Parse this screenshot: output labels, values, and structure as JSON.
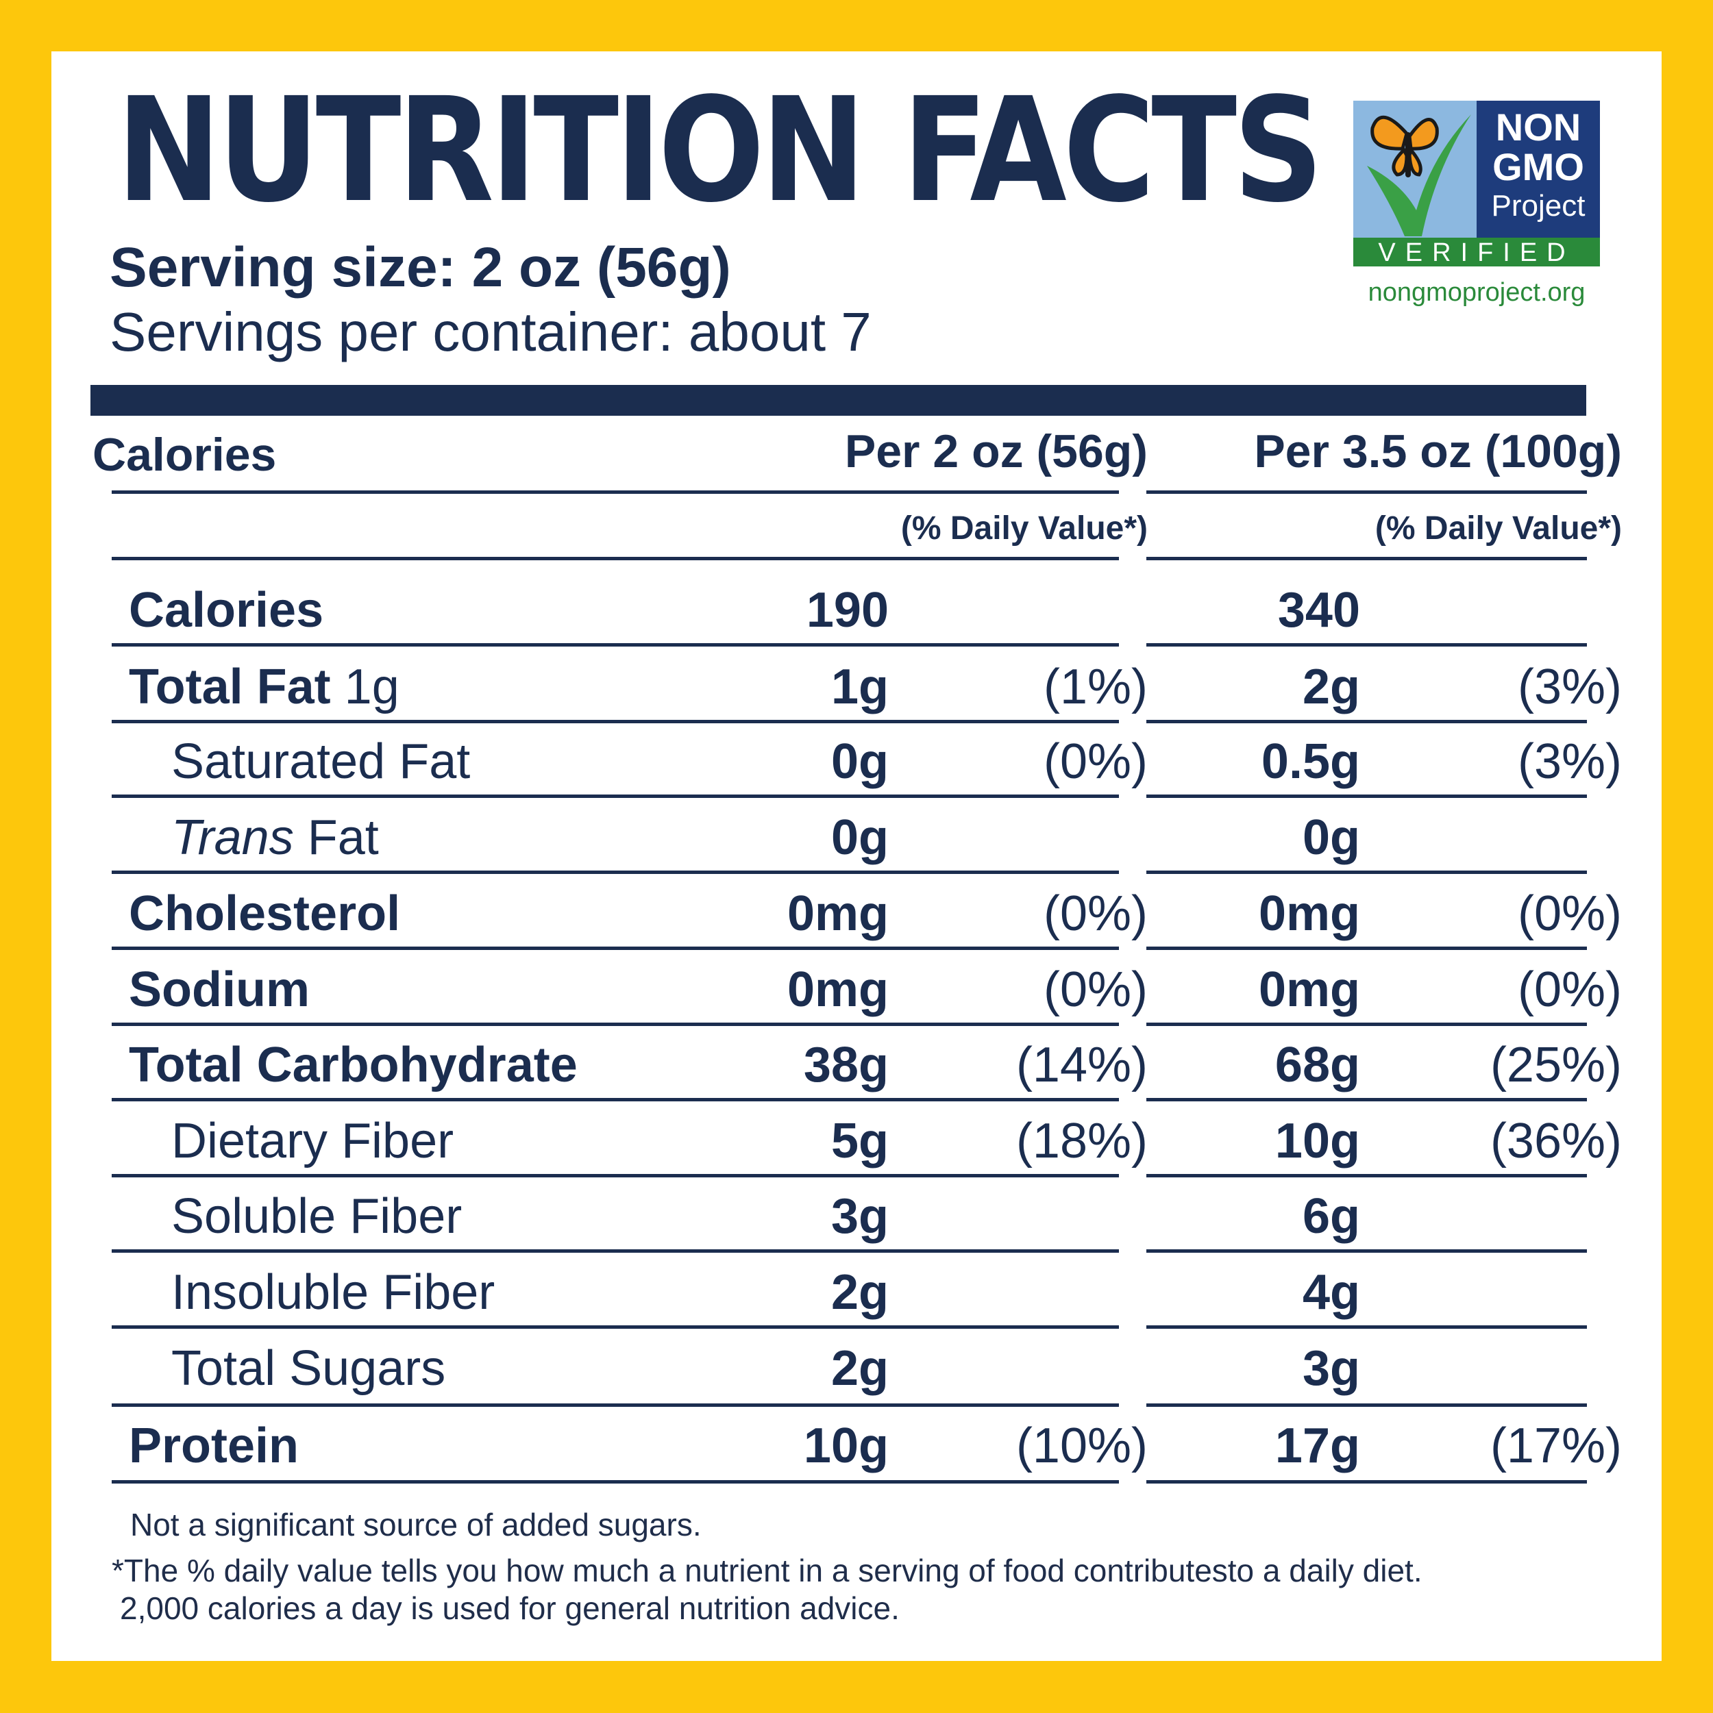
{
  "title": "NUTRITION FACTS",
  "serving_size": "Serving size: 2 oz (56g)",
  "servings_per_container": "Servings per container: about 7",
  "badge": {
    "line1": "NON",
    "line2": "GMO",
    "line3": "Project",
    "verified": "VERIFIED",
    "url": "nongmoproject.org"
  },
  "colors": {
    "background": "#FDC70C",
    "ink": "#1b2d4f",
    "badge_sky": "#8cb8e0",
    "badge_navy": "#1e3c7c",
    "badge_green": "#2a8a3a",
    "butterfly_orange": "#f39a1e"
  },
  "header": {
    "label": "Calories",
    "col1": "Per 2 oz (56g)",
    "col2": "Per 3.5 oz (100g)",
    "dv": "(% Daily Value*)"
  },
  "rows": [
    {
      "label": "Calories",
      "v1": "190",
      "p1": "",
      "v2": "340",
      "p2": ""
    },
    {
      "label": "Total Fat",
      "qty": " 1g",
      "v1": "1g",
      "p1": "(1%)",
      "v2": "2g",
      "p2": "(3%)"
    },
    {
      "label": "Saturated Fat",
      "v1": "0g",
      "p1": "(0%)",
      "v2": "0.5g",
      "p2": "(3%)"
    },
    {
      "label_italic": "Trans",
      "label": " Fat",
      "v1": "0g",
      "p1": "",
      "v2": "0g",
      "p2": ""
    },
    {
      "label": "Cholesterol",
      "v1": "0mg",
      "p1": "(0%)",
      "v2": "0mg",
      "p2": "(0%)"
    },
    {
      "label": "Sodium",
      "v1": "0mg",
      "p1": "(0%)",
      "v2": "0mg",
      "p2": "(0%)"
    },
    {
      "label": "Total Carbohydrate",
      "v1": "38g",
      "p1": "(14%)",
      "v2": "68g",
      "p2": "(25%)"
    },
    {
      "label": "Dietary Fiber",
      "v1": "5g",
      "p1": "(18%)",
      "v2": "10g",
      "p2": "(36%)"
    },
    {
      "label": "Soluble Fiber",
      "v1": "3g",
      "p1": "",
      "v2": "6g",
      "p2": ""
    },
    {
      "label": "Insoluble Fiber",
      "v1": "2g",
      "p1": "",
      "v2": "4g",
      "p2": ""
    },
    {
      "label": "Total Sugars",
      "v1": "2g",
      "p1": "",
      "v2": "3g",
      "p2": ""
    },
    {
      "label": "Protein",
      "v1": "10g",
      "p1": "(10%)",
      "v2": "17g",
      "p2": "(17%)"
    }
  ],
  "footnotes": {
    "added_sugars": "Not a significant source of added sugars.",
    "dv_line1": "*The % daily value tells you how much a nutrient in a serving of food contributesto a daily diet.",
    "dv_line2": "2,000 calories a day is used for general nutrition advice."
  }
}
